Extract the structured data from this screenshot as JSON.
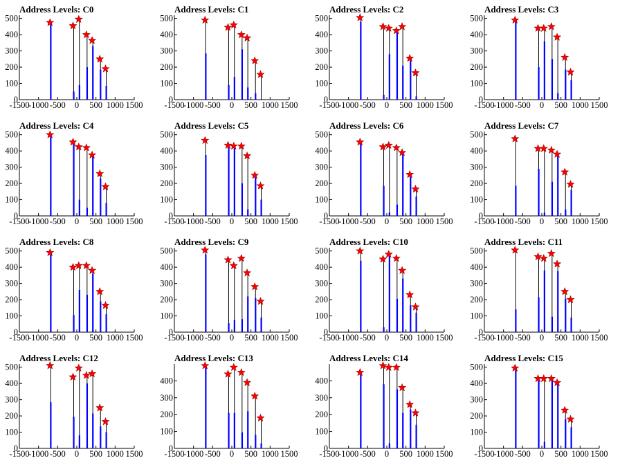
{
  "figure": {
    "chart_count": 16,
    "grid": false,
    "legend": "none",
    "colors": {
      "bar": "#0000ff",
      "trace": "#000000",
      "marker": "#ff0000",
      "marker_stroke": "#990000"
    }
  },
  "chart_data": [
    {
      "type": "bar",
      "title": "Address Levels: C0",
      "xlim": [
        -1500,
        1500
      ],
      "ylim": [
        0,
        520
      ],
      "xticks": [
        "-1500",
        "-1000",
        "-500",
        "0",
        "500",
        "1000",
        "1500"
      ],
      "yticks": [
        "0",
        "100",
        "200",
        "300",
        "400",
        "500"
      ],
      "x": [
        -700,
        -100,
        50,
        250,
        400,
        600,
        750
      ],
      "peaks": [
        475,
        455,
        495,
        400,
        365,
        250,
        190
      ],
      "blue_heights": [
        475,
        50,
        90,
        200,
        330,
        185,
        85
      ]
    },
    {
      "type": "bar",
      "title": "Address Levels: C1",
      "xlim": [
        -1500,
        1500
      ],
      "ylim": [
        0,
        520
      ],
      "xticks": [
        "-1500",
        "-1000",
        "-500",
        "0",
        "500",
        "1000",
        "1500"
      ],
      "yticks": [
        "0",
        "100",
        "200",
        "300",
        "400",
        "500"
      ],
      "x": [
        -700,
        -100,
        50,
        250,
        400,
        600,
        750
      ],
      "peaks": [
        490,
        445,
        460,
        400,
        380,
        240,
        155
      ],
      "blue_heights": [
        285,
        90,
        140,
        310,
        75,
        40,
        0
      ]
    },
    {
      "type": "bar",
      "title": "Address Levels: C2",
      "xlim": [
        -1500,
        1500
      ],
      "ylim": [
        0,
        520
      ],
      "xticks": [
        "-1500",
        "-1000",
        "-500",
        "0",
        "500",
        "1000",
        "1500"
      ],
      "yticks": [
        "0",
        "100",
        "200",
        "300",
        "400",
        "500"
      ],
      "x": [
        -700,
        -100,
        50,
        250,
        400,
        600,
        750
      ],
      "peaks": [
        505,
        450,
        440,
        425,
        450,
        255,
        165
      ],
      "blue_heights": [
        480,
        30,
        280,
        415,
        210,
        240,
        20
      ]
    },
    {
      "type": "bar",
      "title": "Address Levels: C3",
      "xlim": [
        -1500,
        1500
      ],
      "ylim": [
        0,
        520
      ],
      "xticks": [
        "-1500",
        "-1000",
        "-500",
        "0",
        "500",
        "1000",
        "1500"
      ],
      "yticks": [
        "0",
        "100",
        "200",
        "300",
        "400",
        "500"
      ],
      "x": [
        -700,
        -100,
        50,
        250,
        400,
        600,
        750
      ],
      "peaks": [
        490,
        440,
        440,
        450,
        385,
        260,
        170
      ],
      "blue_heights": [
        480,
        200,
        360,
        250,
        40,
        185,
        120
      ]
    },
    {
      "type": "bar",
      "title": "Address Levels: C4",
      "xlim": [
        -1500,
        1500
      ],
      "ylim": [
        0,
        520
      ],
      "xticks": [
        "-1500",
        "-1000",
        "-500",
        "0",
        "500",
        "1000",
        "1500"
      ],
      "yticks": [
        "0",
        "100",
        "200",
        "300",
        "400",
        "500"
      ],
      "x": [
        -700,
        -100,
        50,
        250,
        400,
        600,
        750
      ],
      "peaks": [
        500,
        455,
        425,
        420,
        375,
        260,
        180
      ],
      "blue_heights": [
        500,
        440,
        100,
        50,
        370,
        230,
        80
      ]
    },
    {
      "type": "bar",
      "title": "Address Levels: C5",
      "xlim": [
        -1500,
        1500
      ],
      "ylim": [
        0,
        520
      ],
      "xticks": [
        "-1500",
        "-1000",
        "-500",
        "0",
        "500",
        "1000",
        "1500"
      ],
      "yticks": [
        "0",
        "100",
        "200",
        "300",
        "400",
        "500"
      ],
      "x": [
        -700,
        -100,
        50,
        250,
        400,
        600,
        750
      ],
      "peaks": [
        465,
        435,
        430,
        430,
        370,
        250,
        185
      ],
      "blue_heights": [
        375,
        430,
        420,
        200,
        40,
        250,
        100
      ]
    },
    {
      "type": "bar",
      "title": "Address Levels: C6",
      "xlim": [
        -1500,
        1500
      ],
      "ylim": [
        0,
        520
      ],
      "xticks": [
        "-1500",
        "-1000",
        "-500",
        "0",
        "500",
        "1000",
        "1500"
      ],
      "yticks": [
        "0",
        "100",
        "200",
        "300",
        "400",
        "500"
      ],
      "x": [
        -700,
        -100,
        50,
        250,
        400,
        600,
        750
      ],
      "peaks": [
        455,
        425,
        435,
        420,
        390,
        255,
        165
      ],
      "blue_heights": [
        455,
        185,
        20,
        70,
        380,
        240,
        120
      ]
    },
    {
      "type": "bar",
      "title": "Address Levels: C7",
      "xlim": [
        -1500,
        1500
      ],
      "ylim": [
        0,
        520
      ],
      "xticks": [
        "-1500",
        "-1000",
        "-500",
        "0",
        "500",
        "1000",
        "1500"
      ],
      "yticks": [
        "0",
        "100",
        "200",
        "300",
        "400",
        "500"
      ],
      "x": [
        -700,
        -100,
        50,
        250,
        400,
        600,
        750
      ],
      "peaks": [
        475,
        415,
        415,
        405,
        380,
        270,
        195
      ],
      "blue_heights": [
        185,
        290,
        20,
        210,
        380,
        40,
        160
      ]
    },
    {
      "type": "bar",
      "title": "Address Levels: C8",
      "xlim": [
        -1500,
        1500
      ],
      "ylim": [
        0,
        520
      ],
      "xticks": [
        "-1500",
        "-1000",
        "-500",
        "0",
        "500",
        "1000",
        "1500"
      ],
      "yticks": [
        "0",
        "100",
        "200",
        "300",
        "400",
        "500"
      ],
      "x": [
        -700,
        -100,
        50,
        250,
        400,
        600,
        750
      ],
      "peaks": [
        490,
        400,
        410,
        410,
        380,
        250,
        165
      ],
      "blue_heights": [
        490,
        105,
        260,
        230,
        360,
        190,
        110
      ]
    },
    {
      "type": "bar",
      "title": "Address Levels: C9",
      "xlim": [
        -1500,
        1500
      ],
      "ylim": [
        0,
        520
      ],
      "xticks": [
        "-1500",
        "-1000",
        "-500",
        "0",
        "500",
        "1000",
        "1500"
      ],
      "yticks": [
        "0",
        "100",
        "200",
        "300",
        "400",
        "500"
      ],
      "x": [
        -700,
        -100,
        50,
        250,
        400,
        600,
        750
      ],
      "peaks": [
        505,
        445,
        410,
        455,
        365,
        280,
        190
      ],
      "blue_heights": [
        480,
        55,
        75,
        80,
        220,
        210,
        90
      ]
    },
    {
      "type": "bar",
      "title": "Address Levels: C10",
      "xlim": [
        -1500,
        1500
      ],
      "ylim": [
        0,
        520
      ],
      "xticks": [
        "-1500",
        "-1000",
        "-500",
        "0",
        "500",
        "1000",
        "1500"
      ],
      "yticks": [
        "0",
        "100",
        "200",
        "300",
        "400",
        "500"
      ],
      "x": [
        -700,
        -100,
        50,
        250,
        400,
        600,
        750
      ],
      "peaks": [
        500,
        450,
        480,
        455,
        380,
        230,
        155
      ],
      "blue_heights": [
        440,
        30,
        470,
        205,
        330,
        165,
        120
      ]
    },
    {
      "type": "bar",
      "title": "Address Levels: C11",
      "xlim": [
        -1500,
        1500
      ],
      "ylim": [
        0,
        520
      ],
      "xticks": [
        "-1500",
        "-1000",
        "-500",
        "0",
        "500",
        "1000",
        "1500"
      ],
      "yticks": [
        "0",
        "100",
        "200",
        "300",
        "400",
        "500"
      ],
      "x": [
        -700,
        -100,
        50,
        250,
        400,
        600,
        750
      ],
      "peaks": [
        505,
        465,
        455,
        485,
        420,
        250,
        200
      ],
      "blue_heights": [
        140,
        215,
        380,
        95,
        375,
        205,
        90
      ]
    },
    {
      "type": "bar",
      "title": "Address Levels: C12",
      "xlim": [
        -1500,
        1500
      ],
      "ylim": [
        0,
        520
      ],
      "xticks": [
        "-1500",
        "-1000",
        "-500",
        "0",
        "500",
        "1000",
        "1500"
      ],
      "yticks": [
        "0",
        "100",
        "200",
        "300",
        "400",
        "500"
      ],
      "x": [
        -700,
        -100,
        50,
        250,
        400,
        600,
        750
      ],
      "peaks": [
        510,
        440,
        495,
        450,
        460,
        250,
        165
      ],
      "blue_heights": [
        285,
        195,
        80,
        400,
        215,
        135,
        100
      ]
    },
    {
      "type": "bar",
      "title": "Address Levels: C13",
      "xlim": [
        -1500,
        1500
      ],
      "ylim": [
        0,
        500
      ],
      "xticks": [
        "-1500",
        "-1000",
        "-500",
        "0",
        "500",
        "1000",
        "1500"
      ],
      "yticks": [
        "0",
        "100",
        "200",
        "300",
        "400"
      ],
      "x": [
        -700,
        -100,
        50,
        250,
        400,
        600,
        750
      ],
      "peaks": [
        490,
        440,
        480,
        450,
        390,
        310,
        180
      ],
      "blue_heights": [
        490,
        210,
        210,
        95,
        220,
        80,
        30
      ]
    },
    {
      "type": "bar",
      "title": "Address Levels: C14",
      "xlim": [
        -1500,
        1500
      ],
      "ylim": [
        0,
        500
      ],
      "xticks": [
        "-1500",
        "-1000",
        "-500",
        "0",
        "500",
        "1000",
        "1500"
      ],
      "yticks": [
        "0",
        "100",
        "200",
        "300",
        "400"
      ],
      "x": [
        -700,
        -100,
        50,
        250,
        400,
        600,
        750
      ],
      "peaks": [
        450,
        490,
        480,
        480,
        360,
        260,
        210
      ],
      "blue_heights": [
        450,
        380,
        30,
        350,
        210,
        230,
        140
      ]
    },
    {
      "type": "bar",
      "title": "Address Levels: C15",
      "xlim": [
        -1500,
        1500
      ],
      "ylim": [
        0,
        520
      ],
      "xticks": [
        "-1500",
        "-1000",
        "-500",
        "0",
        "500",
        "1000",
        "1500"
      ],
      "yticks": [
        "0",
        "100",
        "200",
        "300",
        "400",
        "500"
      ],
      "x": [
        -700,
        -100,
        50,
        250,
        400,
        600,
        750
      ],
      "peaks": [
        495,
        430,
        430,
        430,
        405,
        235,
        180
      ],
      "blue_heights": [
        495,
        420,
        40,
        420,
        400,
        180,
        130
      ]
    }
  ]
}
